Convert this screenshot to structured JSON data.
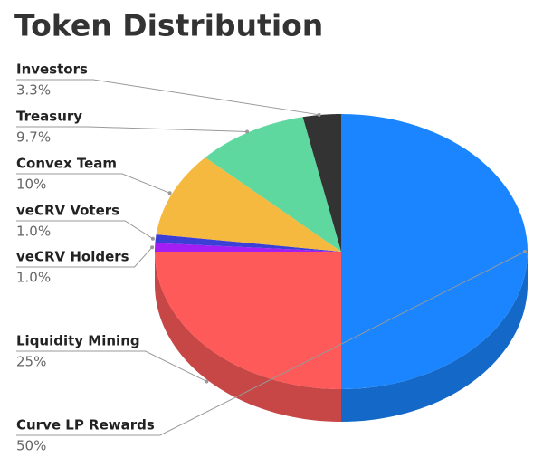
{
  "chart_data": {
    "type": "pie",
    "title": "Token Distribution",
    "categories": [
      "Curve LP Rewards",
      "Liquidity Mining",
      "veCRV Holders",
      "veCRV Voters",
      "Convex Team",
      "Treasury",
      "Investors"
    ],
    "values": [
      50,
      25,
      1.0,
      1.0,
      10,
      9.7,
      3.3
    ],
    "value_labels": [
      "50%",
      "25%",
      "1.0%",
      "1.0%",
      "10%",
      "9.7%",
      "3.3%"
    ],
    "colors": [
      "#1a85ff",
      "#ff5a5a",
      "#a41df2",
      "#3b3fd6",
      "#f4b93e",
      "#5fd8a0",
      "#333333"
    ]
  }
}
